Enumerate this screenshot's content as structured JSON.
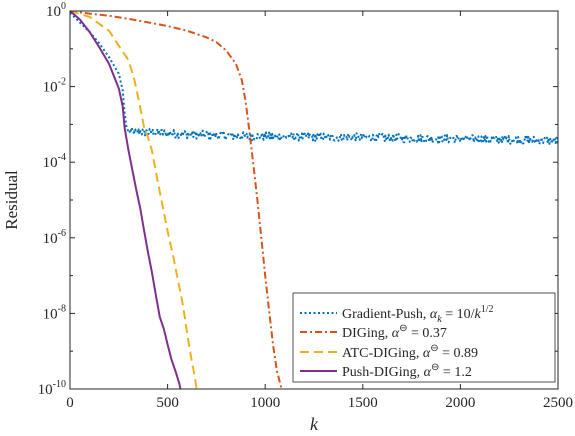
{
  "chart_data": {
    "type": "line",
    "xlabel": "k",
    "ylabel": "Residual",
    "yscale": "log",
    "xlim": [
      0,
      2500
    ],
    "ylim": [
      1e-10,
      1
    ],
    "x_ticks": [
      0,
      500,
      1000,
      1500,
      2000,
      2500
    ],
    "y_ticks": [
      {
        "value": 1e-10,
        "base": "10",
        "exp": "-10"
      },
      {
        "value": 1e-08,
        "base": "10",
        "exp": "-8"
      },
      {
        "value": 1e-06,
        "base": "10",
        "exp": "-6"
      },
      {
        "value": 0.0001,
        "base": "10",
        "exp": "-4"
      },
      {
        "value": 0.01,
        "base": "10",
        "exp": "-2"
      },
      {
        "value": 1,
        "base": "10",
        "exp": "0"
      }
    ],
    "grid": false,
    "legend_position": "bottom-right",
    "series": [
      {
        "name": "Gradient-Push, αk = 10/k1/2",
        "legend": {
          "prefix": "Gradient-Push, ",
          "alpha": "α",
          "sub": "k",
          "mid": " = 10/",
          "kvar": "k",
          "sup": "1/2"
        },
        "color": "#0072BD",
        "dash": "2,2.5",
        "noisy": true,
        "x": [
          0,
          50,
          100,
          150,
          200,
          250,
          270,
          280,
          290,
          300,
          400,
          500,
          600,
          800,
          1000,
          1200,
          1500,
          1800,
          2000,
          2200,
          2400,
          2500
        ],
        "y": [
          0.9,
          0.5,
          0.28,
          0.14,
          0.06,
          0.022,
          0.008,
          0.002,
          0.0008,
          0.00065,
          0.00062,
          0.00058,
          0.00055,
          0.0005,
          0.00048,
          0.00047,
          0.00045,
          0.00042,
          0.00041,
          0.0004,
          0.00038,
          0.00037
        ]
      },
      {
        "name": "DIGing, α⊖ = 0.37",
        "legend": {
          "prefix": "DIGing, ",
          "alpha": "α",
          "sup": "⊖",
          "value": " = 0.37"
        },
        "color": "#D95319",
        "dash": "7,3,2,3",
        "noisy": false,
        "x": [
          0,
          100,
          200,
          300,
          400,
          500,
          600,
          700,
          750,
          800,
          850,
          880,
          900,
          920,
          940,
          960,
          980,
          1000,
          1020,
          1040,
          1060,
          1080,
          1090,
          1100
        ],
        "y": [
          1,
          0.85,
          0.75,
          0.62,
          0.5,
          0.4,
          0.3,
          0.2,
          0.15,
          0.09,
          0.04,
          0.015,
          0.004,
          0.0006,
          8e-05,
          1e-05,
          1e-06,
          1e-07,
          1.2e-08,
          1.5e-09,
          3e-10,
          1.2e-10,
          8e-11,
          5e-11
        ]
      },
      {
        "name": "ATC-DIGing, α⊖ = 0.89",
        "legend": {
          "prefix": "ATC-DIGing, ",
          "alpha": "α",
          "sup": "⊖",
          "value": " = 0.89"
        },
        "color": "#EDB120",
        "dash": "9,5",
        "noisy": false,
        "x": [
          0,
          100,
          200,
          250,
          300,
          330,
          350,
          370,
          380,
          400,
          420,
          450,
          480,
          500,
          530,
          560,
          580,
          600,
          620,
          640,
          655
        ],
        "y": [
          1,
          0.7,
          0.3,
          0.12,
          0.05,
          0.015,
          0.005,
          0.0015,
          0.0008,
          0.00045,
          0.0002,
          3e-05,
          5e-06,
          1.5e-06,
          3e-07,
          5e-08,
          1.5e-08,
          3e-09,
          7e-10,
          2e-10,
          6e-11
        ]
      },
      {
        "name": "Push-DIGing, α⊖ = 1.2",
        "legend": {
          "prefix": "Push-DIGing, ",
          "alpha": "α",
          "sup": "⊖",
          "value": " = 1.2"
        },
        "color": "#7E2F8E",
        "dash": "",
        "noisy": false,
        "x": [
          0,
          50,
          100,
          150,
          200,
          250,
          270,
          280,
          300,
          320,
          340,
          360,
          380,
          400,
          420,
          440,
          460,
          480,
          500,
          520,
          540,
          560,
          575
        ],
        "y": [
          1,
          0.6,
          0.28,
          0.11,
          0.04,
          0.009,
          0.003,
          0.0008,
          0.0002,
          6e-05,
          1.8e-05,
          6e-06,
          1.5e-06,
          4e-07,
          1.2e-07,
          3e-08,
          8e-09,
          4e-09,
          1.5e-09,
          6e-10,
          3e-10,
          1.4e-10,
          6e-11
        ]
      }
    ]
  }
}
